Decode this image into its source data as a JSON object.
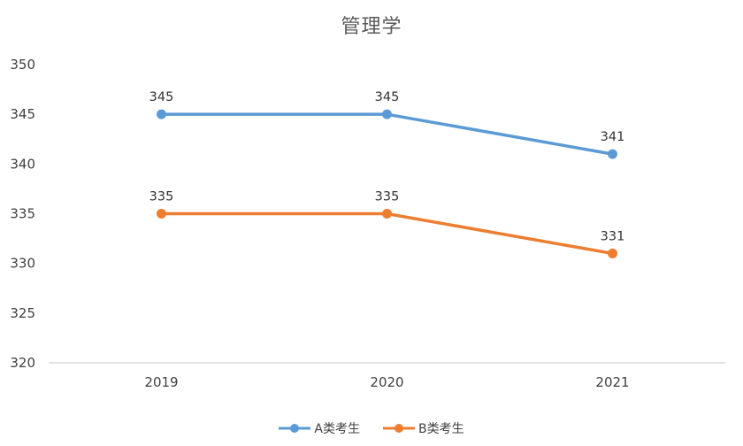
{
  "chart_data": {
    "type": "line",
    "title": "管理学",
    "categories": [
      "2019",
      "2020",
      "2021"
    ],
    "series": [
      {
        "name": "A类考生",
        "values": [
          345,
          345,
          341
        ],
        "color": "#5B9BD5"
      },
      {
        "name": "B类考生",
        "values": [
          335,
          335,
          331
        ],
        "color": "#ED7D31"
      }
    ],
    "ylim": [
      320,
      350
    ],
    "ytick_step": 5,
    "ytick_labels": [
      "350",
      "345",
      "340",
      "335",
      "330",
      "325",
      "320"
    ],
    "grid": false,
    "data_labels": true,
    "legend_position": "bottom",
    "xlabel": "",
    "ylabel": "",
    "axis_line_color": "#d9d9d9",
    "tick_label_color": "#404040",
    "data_label_color": "#333333",
    "title_color": "#595959"
  }
}
